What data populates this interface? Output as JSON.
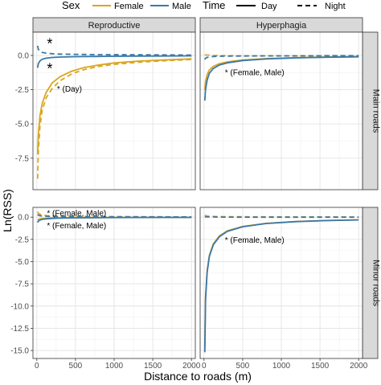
{
  "legend": {
    "sex_title": "Sex",
    "sex_items": [
      {
        "label": "Female",
        "color": "#DAA520"
      },
      {
        "label": "Male",
        "color": "#3A78A8"
      }
    ],
    "time_title": "Time",
    "time_items": [
      {
        "label": "Day",
        "linetype": "solid"
      },
      {
        "label": "Night",
        "linetype": "dashed"
      }
    ]
  },
  "chart_data": {
    "type": "line",
    "xlabel": "Distance to roads (m)",
    "ylabel": "Ln(RSS)",
    "x_ticks": [
      0,
      500,
      1000,
      1500,
      2000
    ],
    "y_ticks": [
      "0.0",
      "-2.5",
      "-5.0",
      "-7.5",
      "-10.0",
      "-12.5",
      "-15.0"
    ],
    "grid": true,
    "legend_position": "top",
    "colors": {
      "Female": "#DAA520",
      "Male": "#3A78A8"
    },
    "col_facets": [
      "Reproductive",
      "Hyperphagia"
    ],
    "row_facets": [
      "Main roads",
      "Minor roads"
    ],
    "panels": [
      {
        "col": "Reproductive",
        "row": "Main roads",
        "xlim": [
          -50,
          2050
        ],
        "ylim": [
          -9.8,
          1.7
        ],
        "annotations": [
          {
            "text": "*",
            "x": 130,
            "y": 0.9
          },
          {
            "text": "*",
            "x": 130,
            "y": -0.9
          },
          {
            "text": "* (Day)",
            "x": 260,
            "y": -2.4
          }
        ],
        "series": [
          {
            "name": "Female-Day",
            "sex": "Female",
            "time": "Day",
            "x": [
              10,
              20,
              40,
              70,
              120,
              200,
              300,
              450,
              600,
              800,
              1000,
              1300,
              1600,
              2000
            ],
            "y": [
              -7.2,
              -5.8,
              -4.4,
              -3.5,
              -2.7,
              -2.0,
              -1.55,
              -1.15,
              -0.9,
              -0.7,
              -0.55,
              -0.42,
              -0.34,
              -0.25
            ]
          },
          {
            "name": "Female-Night",
            "sex": "Female",
            "time": "Night",
            "x": [
              10,
              20,
              40,
              70,
              120,
              200,
              300,
              450,
              600,
              800,
              1000,
              1300,
              1600,
              2000
            ],
            "y": [
              -9.0,
              -7.0,
              -5.2,
              -4.0,
              -3.1,
              -2.4,
              -1.85,
              -1.35,
              -1.05,
              -0.8,
              -0.65,
              -0.5,
              -0.4,
              -0.3
            ]
          },
          {
            "name": "Male-Day",
            "sex": "Male",
            "time": "Day",
            "x": [
              10,
              20,
              40,
              70,
              120,
              200,
              300,
              500,
              800,
              1200,
              1600,
              2000
            ],
            "y": [
              -0.9,
              -0.6,
              -0.4,
              -0.28,
              -0.2,
              -0.15,
              -0.12,
              -0.09,
              -0.07,
              -0.05,
              -0.04,
              -0.03
            ]
          },
          {
            "name": "Male-Night",
            "sex": "Male",
            "time": "Night",
            "x": [
              10,
              20,
              40,
              70,
              120,
              200,
              300,
              500,
              800,
              1200,
              1600,
              2000
            ],
            "y": [
              0.7,
              0.45,
              0.3,
              0.22,
              0.17,
              0.13,
              0.1,
              0.08,
              0.06,
              0.05,
              0.04,
              0.03
            ]
          }
        ]
      },
      {
        "col": "Hyperphagia",
        "row": "Main roads",
        "xlim": [
          -50,
          2050
        ],
        "ylim": [
          -9.8,
          1.7
        ],
        "annotations": [
          {
            "text": "* (Female, Male)",
            "x": 270,
            "y": -1.2
          }
        ],
        "series": [
          {
            "name": "Female-Day",
            "sex": "Female",
            "time": "Day",
            "x": [
              10,
              20,
              40,
              70,
              120,
              200,
              300,
              500,
              800,
              1200,
              1600,
              2000
            ],
            "y": [
              -2.5,
              -1.9,
              -1.4,
              -1.05,
              -0.8,
              -0.6,
              -0.47,
              -0.33,
              -0.23,
              -0.16,
              -0.12,
              -0.09
            ]
          },
          {
            "name": "Female-Night",
            "sex": "Female",
            "time": "Night",
            "x": [
              10,
              20,
              40,
              70,
              120,
              200,
              300,
              500,
              800,
              1200,
              1600,
              2000
            ],
            "y": [
              0.05,
              0.04,
              0.03,
              0.02,
              0.0,
              -0.01,
              -0.02,
              -0.03,
              -0.03,
              -0.03,
              -0.03,
              -0.03
            ]
          },
          {
            "name": "Male-Day",
            "sex": "Male",
            "time": "Day",
            "x": [
              10,
              20,
              40,
              70,
              120,
              200,
              300,
              500,
              800,
              1200,
              1600,
              2000
            ],
            "y": [
              -3.3,
              -2.5,
              -1.8,
              -1.3,
              -0.95,
              -0.7,
              -0.54,
              -0.37,
              -0.26,
              -0.18,
              -0.13,
              -0.1
            ]
          },
          {
            "name": "Male-Night",
            "sex": "Male",
            "time": "Night",
            "x": [
              10,
              20,
              40,
              70,
              120,
              200,
              300,
              500,
              800,
              1200,
              1600,
              2000
            ],
            "y": [
              -0.3,
              -0.2,
              -0.14,
              -0.1,
              -0.08,
              -0.06,
              -0.05,
              -0.04,
              -0.03,
              -0.03,
              -0.02,
              -0.02
            ]
          }
        ]
      },
      {
        "col": "Reproductive",
        "row": "Minor roads",
        "xlim": [
          -50,
          2050
        ],
        "ylim": [
          -15.9,
          1.1
        ],
        "annotations": [
          {
            "text": "* (Female, Male)",
            "x": 130,
            "y": 0.5
          },
          {
            "text": "* (Female, Male)",
            "x": 130,
            "y": -0.9
          }
        ],
        "series": [
          {
            "name": "Female-Day",
            "sex": "Female",
            "time": "Day",
            "x": [
              10,
              20,
              40,
              70,
              120,
              200,
              300,
              500,
              800,
              1200,
              1600,
              2000
            ],
            "y": [
              -0.32,
              -0.26,
              -0.2,
              -0.16,
              -0.13,
              -0.1,
              -0.08,
              -0.06,
              -0.05,
              -0.04,
              -0.03,
              -0.03
            ]
          },
          {
            "name": "Female-Night",
            "sex": "Female",
            "time": "Night",
            "x": [
              10,
              20,
              40,
              70,
              120,
              200,
              300,
              500,
              800,
              1200,
              1600,
              2000
            ],
            "y": [
              0.6,
              0.45,
              0.33,
              0.25,
              0.19,
              0.15,
              0.12,
              0.09,
              0.07,
              0.05,
              0.04,
              0.03
            ]
          },
          {
            "name": "Male-Day",
            "sex": "Male",
            "time": "Day",
            "x": [
              10,
              20,
              40,
              70,
              120,
              200,
              300,
              500,
              800,
              1200,
              1600,
              2000
            ],
            "y": [
              -0.6,
              -0.45,
              -0.33,
              -0.25,
              -0.19,
              -0.14,
              -0.11,
              -0.08,
              -0.06,
              -0.04,
              -0.03,
              -0.03
            ]
          },
          {
            "name": "Male-Night",
            "sex": "Male",
            "time": "Night",
            "x": [
              10,
              20,
              40,
              70,
              120,
              200,
              300,
              500,
              800,
              1200,
              1600,
              2000
            ],
            "y": [
              0.3,
              0.22,
              0.16,
              0.12,
              0.1,
              0.08,
              0.06,
              0.05,
              0.04,
              0.03,
              0.02,
              0.02
            ]
          }
        ]
      },
      {
        "col": "Hyperphagia",
        "row": "Minor roads",
        "xlim": [
          -50,
          2050
        ],
        "ylim": [
          -15.9,
          1.1
        ],
        "annotations": [
          {
            "text": "* (Female, Male)",
            "x": 270,
            "y": -2.5
          }
        ],
        "series": [
          {
            "name": "Female-Day",
            "sex": "Female",
            "time": "Day",
            "x": [
              10,
              20,
              40,
              70,
              120,
              200,
              300,
              500,
              800,
              1200,
              1600,
              2000
            ],
            "y": [
              -14.6,
              -9.0,
              -6.0,
              -4.3,
              -3.0,
              -2.1,
              -1.55,
              -1.05,
              -0.7,
              -0.48,
              -0.37,
              -0.3
            ]
          },
          {
            "name": "Female-Night",
            "sex": "Female",
            "time": "Night",
            "x": [
              10,
              20,
              40,
              70,
              120,
              200,
              300,
              500,
              800,
              1200,
              1600,
              2000
            ],
            "y": [
              0.25,
              0.18,
              0.13,
              0.1,
              0.08,
              0.06,
              0.05,
              0.04,
              0.03,
              0.02,
              0.02,
              0.01
            ]
          },
          {
            "name": "Male-Day",
            "sex": "Male",
            "time": "Day",
            "x": [
              10,
              20,
              40,
              70,
              120,
              200,
              300,
              500,
              800,
              1200,
              1600,
              2000
            ],
            "y": [
              -15.2,
              -9.3,
              -6.2,
              -4.4,
              -3.1,
              -2.2,
              -1.6,
              -1.08,
              -0.72,
              -0.5,
              -0.38,
              -0.31
            ]
          },
          {
            "name": "Male-Night",
            "sex": "Male",
            "time": "Night",
            "x": [
              10,
              20,
              40,
              70,
              120,
              200,
              300,
              500,
              800,
              1200,
              1600,
              2000
            ],
            "y": [
              0.05,
              0.04,
              0.03,
              0.02,
              0.02,
              0.01,
              0.01,
              0.0,
              0.0,
              0.0,
              0.0,
              0.0
            ]
          }
        ]
      }
    ]
  }
}
